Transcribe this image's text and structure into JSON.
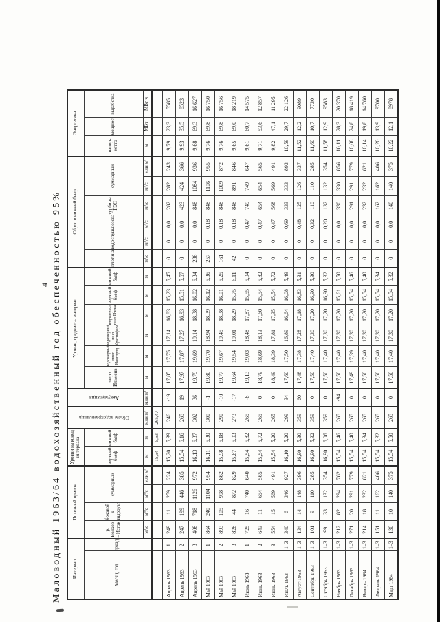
{
  "page": {
    "number": "4",
    "title": "Маловодный 1963/64 водохозяйственный год обеспеченностью 95%"
  },
  "table": {
    "groups": {
      "interval": "Интервал",
      "inflow": "Полезный приток",
      "levels_end": "Уровни на конец интервала",
      "volume": "Объем водохранилища",
      "accumulation": "Аккумуляция",
      "levels_avg": "Уровни, средние за интервал",
      "release": "Сброс в нижний бьеф",
      "energy": "Энергетика"
    },
    "columns": {
      "month": "Месяц, год",
      "decade": "декада",
      "volkhov": "р. Волхов – Исток",
      "lateral": "боковой к гидроузлу",
      "inflow_total": "суммарный",
      "upstream": "верхний бьеф",
      "downstream": "нижний бьеф",
      "lake_ilmen": "озеро Ильмень",
      "post_novgorod": "водомерный пост Новгород",
      "post_krasnofarforny": "водомерный пост Краснофарфорный",
      "post_pcheva": "водомерный пост Пчева",
      "upstream_avg": "верхний бьеф",
      "downstream_avg": "нижний бьеф",
      "dam": "плотина",
      "outlet": "водоспуск",
      "lockage": "шлюзование",
      "turbines": "турбины ГЭС",
      "release_total": "суммарный",
      "net_head": "напор-нетто",
      "power": "мощность",
      "generation": "выработка"
    },
    "units_row": [
      "м³/с",
      "м³/с",
      "м³/с",
      "млн м³",
      "м",
      "м",
      "млн м³",
      "млн м³",
      "м",
      "м",
      "м",
      "м",
      "м",
      "м",
      "м³/с",
      "м³/с",
      "м³/с",
      "м³/с",
      "м³/с",
      "млн м³",
      "м",
      "МВт",
      "МВт·ч"
    ],
    "initial_row": [
      "",
      "",
      "",
      "",
      "",
      "",
      "15,54",
      "5,63",
      "265,47",
      "",
      "",
      "",
      "",
      "",
      "",
      "",
      "",
      "",
      "",
      "",
      "",
      "",
      "",
      "",
      ""
    ],
    "rows": [
      [
        "Апрель 1963",
        "1",
        "249",
        "11",
        "259",
        "224",
        "15,20",
        "5,39",
        "246",
        "-19",
        "17,85",
        "17,75",
        "17,14",
        "16,83",
        "15,23",
        "5,45",
        "0",
        "0",
        "0,0",
        "282",
        "282",
        "243",
        "9,79",
        "23,3",
        "5585"
      ],
      [
        "Апрель 1963",
        "2",
        "247",
        "199",
        "446",
        "385",
        "15,54",
        "6,16",
        "265",
        "19",
        "17,97",
        "17,87",
        "17,27",
        "16,93",
        "15,51",
        "5,57",
        "0",
        "0",
        "0,0",
        "423",
        "424",
        "366",
        "9,93",
        "35,5",
        "8523"
      ],
      [
        "Апрель 1963",
        "3",
        "408",
        "718",
        "1126",
        "972",
        "16,13",
        "6,37",
        "302",
        "36",
        "19,79",
        "19,69",
        "19,14",
        "18,38",
        "16,02",
        "6,34",
        "236",
        "0",
        "0,0",
        "848",
        "1084",
        "936",
        "9,68",
        "69,3",
        "16 627"
      ],
      [
        "Май 1963",
        "1",
        "864",
        "240",
        "1104",
        "954",
        "16,11",
        "6,30",
        "300",
        "-1",
        "19,80",
        "19,70",
        "18,94",
        "18,39",
        "16,12",
        "6,36",
        "257",
        "0",
        "0,18",
        "848",
        "1106",
        "955",
        "9,76",
        "69,8",
        "16 750"
      ],
      [
        "Май 1963",
        "2",
        "893",
        "105",
        "998",
        "862",
        "15,98",
        "6,18",
        "290",
        "-10",
        "19,77",
        "19,67",
        "19,45",
        "18,38",
        "16,01",
        "6,25",
        "161",
        "0",
        "0,18",
        "848",
        "1009",
        "872",
        "9,76",
        "69,8",
        "16 756"
      ],
      [
        "Май 1963",
        "3",
        "828",
        "44",
        "872",
        "829",
        "15,67",
        "6,03",
        "273",
        "-17",
        "19,64",
        "19,54",
        "19,01",
        "18,29",
        "15,75",
        "6,11",
        "42",
        "0",
        "0,18",
        "848",
        "891",
        "846",
        "9,65",
        "69,0",
        "18 219"
      ],
      [
        "Июнь 1963",
        "1",
        "725",
        "16",
        "740",
        "640",
        "15,54",
        "5,82",
        "265",
        "-8",
        "19,13",
        "19,03",
        "18,48",
        "17,87",
        "15,55",
        "5,94",
        "0",
        "0",
        "0,47",
        "749",
        "749",
        "647",
        "9,61",
        "60,7",
        "14 575"
      ],
      [
        "Июнь 1963",
        "2",
        "643",
        "11",
        "654",
        "565",
        "15,54",
        "5,72",
        "265",
        "0",
        "18,79",
        "18,69",
        "18,13",
        "17,60",
        "15,54",
        "5,82",
        "0",
        "0",
        "0,47",
        "654",
        "654",
        "565",
        "9,71",
        "53,6",
        "12 857"
      ],
      [
        "Июнь 1963",
        "3",
        "554",
        "15",
        "569",
        "491",
        "15,54",
        "5,20",
        "265",
        "0",
        "18,49",
        "18,39",
        "17,81",
        "17,35",
        "15,54",
        "5,72",
        "0",
        "0",
        "0,47",
        "568",
        "569",
        "491",
        "9,82",
        "47,1",
        "11 295"
      ],
      [
        "Июль 1963",
        "1–3",
        "340",
        "6",
        "346",
        "927",
        "16,10",
        "5,20",
        "299",
        "34",
        "17,60",
        "17,50",
        "16,89",
        "16,64",
        "16,08",
        "5,49",
        "0",
        "0",
        "0,69",
        "333",
        "333",
        "893",
        "10,59",
        "29,7",
        "22 126"
      ],
      [
        "Август 1963",
        "1–3",
        "134",
        "14",
        "148",
        "396",
        "16,90",
        "5,30",
        "359",
        "60",
        "17,48",
        "17,38",
        "17,28",
        "17,18",
        "16,83",
        "5,31",
        "0",
        "0",
        "0,48",
        "125",
        "126",
        "337",
        "11,52",
        "12,2",
        "9089"
      ],
      [
        "Сентябрь 1963",
        "1–3",
        "101",
        "9",
        "110",
        "285",
        "16,90",
        "5,32",
        "359",
        "0",
        "17,50",
        "17,40",
        "17,30",
        "17,20",
        "16,90",
        "5,30",
        "0",
        "0",
        "0,32",
        "110",
        "110",
        "285",
        "11,60",
        "10,7",
        "7730"
      ],
      [
        "Октябрь 1963",
        "1–3",
        "99",
        "33",
        "132",
        "354",
        "16,90",
        "6,06",
        "359",
        "0",
        "17,50",
        "17,40",
        "17,30",
        "17,20",
        "16,90",
        "5,32",
        "0",
        "0",
        "0,20",
        "132",
        "132",
        "354",
        "11,58",
        "12,9",
        "9583"
      ],
      [
        "Ноябрь 1963",
        "1–3",
        "212",
        "82",
        "294",
        "762",
        "15,54",
        "5,46",
        "265",
        "-94",
        "17,50",
        "17,40",
        "17,30",
        "17,20",
        "15,61",
        "5,50",
        "0",
        "0",
        "0,0",
        "330",
        "330",
        "856",
        "10,11",
        "28,3",
        "20 370"
      ],
      [
        "Декабрь 1963",
        "1–3",
        "271",
        "20",
        "291",
        "779",
        "15,54",
        "5,40",
        "265",
        "0",
        "17,49",
        "17,39",
        "17,30",
        "17,20",
        "15,54",
        "5,46",
        "0",
        "0",
        "0,0",
        "291",
        "291",
        "779",
        "10,08",
        "24,8",
        "18 419"
      ],
      [
        "Январь 1964",
        "1–3",
        "214",
        "18",
        "232",
        "621",
        "15,54",
        "5,34",
        "265",
        "0",
        "17,50",
        "17,40",
        "17,30",
        "17,20",
        "15,54",
        "5,40",
        "0",
        "0",
        "0,0",
        "232",
        "232",
        "621",
        "10,14",
        "19,8",
        "14 760"
      ],
      [
        "Февраль 1964",
        "1–3",
        "151",
        "11",
        "162",
        "406",
        "15,54",
        "5,32",
        "265",
        "0",
        "17,50",
        "17,40",
        "17,30",
        "17,20",
        "15,54",
        "5,34",
        "0",
        "0",
        "0,0",
        "162",
        "162",
        "406",
        "10,20",
        "13,9",
        "9700"
      ],
      [
        "Март 1964",
        "1–3",
        "130",
        "10",
        "140",
        "375",
        "15,54",
        "5,50",
        "265",
        "0",
        "17,50",
        "17,40",
        "17,30",
        "17,20",
        "15,54",
        "5,32",
        "0",
        "0",
        "0,0",
        "140",
        "140",
        "375",
        "10,22",
        "12,1",
        "8978"
      ]
    ]
  }
}
